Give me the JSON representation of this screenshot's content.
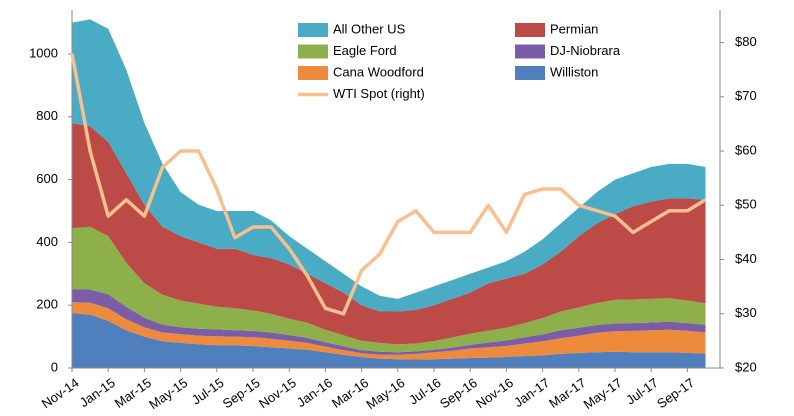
{
  "chart_data": {
    "type": "area",
    "categories": [
      "Nov-14",
      null,
      "Jan-15",
      null,
      "Mar-15",
      null,
      "May-15",
      null,
      "Jul-15",
      null,
      "Sep-15",
      null,
      "Nov-15",
      null,
      "Jan-16",
      null,
      "Mar-16",
      null,
      "May-16",
      null,
      "Jul-16",
      null,
      "Sep-16",
      null,
      "Nov-16",
      null,
      "Jan-17",
      null,
      "Mar-17",
      null,
      "May-17",
      null,
      "Jul-17",
      null,
      "Sep-17",
      null
    ],
    "series": [
      {
        "name": "Williston",
        "color": "#4f7fbd",
        "values": [
          175,
          170,
          150,
          120,
          100,
          85,
          80,
          75,
          73,
          72,
          70,
          66,
          62,
          58,
          50,
          42,
          35,
          30,
          28,
          27,
          28,
          30,
          32,
          33,
          35,
          38,
          40,
          45,
          48,
          50,
          52,
          50,
          50,
          50,
          48,
          46
        ]
      },
      {
        "name": "Cana Woodford",
        "color": "#ee8a3c",
        "values": [
          35,
          38,
          40,
          35,
          30,
          28,
          28,
          28,
          28,
          28,
          28,
          27,
          25,
          22,
          18,
          15,
          12,
          12,
          14,
          18,
          22,
          25,
          30,
          33,
          35,
          40,
          45,
          50,
          55,
          62,
          65,
          68,
          70,
          72,
          70,
          68
        ]
      },
      {
        "name": "DJ-Niobrara",
        "color": "#7b5ca7",
        "values": [
          40,
          42,
          45,
          40,
          30,
          25,
          22,
          22,
          22,
          20,
          20,
          20,
          18,
          16,
          14,
          12,
          10,
          10,
          8,
          8,
          8,
          10,
          12,
          15,
          18,
          20,
          22,
          25,
          25,
          25,
          25,
          25,
          25,
          25,
          25,
          24
        ]
      },
      {
        "name": "Eagle Ford",
        "color": "#8eb04b",
        "values": [
          195,
          200,
          185,
          140,
          110,
          95,
          85,
          80,
          72,
          70,
          65,
          60,
          52,
          48,
          40,
          35,
          30,
          28,
          25,
          25,
          28,
          32,
          35,
          38,
          40,
          45,
          52,
          60,
          65,
          70,
          75,
          75,
          75,
          75,
          72,
          68
        ]
      },
      {
        "name": "Permian",
        "color": "#bc4a47",
        "values": [
          335,
          320,
          300,
          285,
          250,
          217,
          205,
          195,
          185,
          190,
          177,
          177,
          173,
          156,
          148,
          136,
          113,
          100,
          105,
          107,
          114,
          123,
          131,
          151,
          157,
          157,
          171,
          190,
          227,
          253,
          273,
          297,
          310,
          318,
          325,
          329
        ]
      },
      {
        "name": "All Other US",
        "color": "#4aabc5",
        "values": [
          320,
          340,
          360,
          330,
          260,
          200,
          140,
          120,
          120,
          120,
          140,
          120,
          90,
          80,
          70,
          60,
          60,
          50,
          40,
          55,
          60,
          60,
          60,
          50,
          55,
          70,
          80,
          90,
          90,
          100,
          110,
          105,
          110,
          110,
          110,
          105
        ]
      },
      {
        "name": "WTI Spot (right)",
        "color": "#f7c08e",
        "type": "line",
        "axis": "y2",
        "values": [
          78,
          60,
          48,
          51,
          48,
          57,
          60,
          60,
          53,
          44,
          46,
          46,
          42,
          37,
          31,
          30,
          38,
          41,
          47,
          49,
          45,
          45,
          45,
          50,
          45,
          52,
          53,
          53,
          50,
          49,
          48,
          45,
          47,
          49,
          49,
          51
        ]
      }
    ],
    "ylim": [
      0,
      1140
    ],
    "yticks": [
      0,
      200,
      400,
      600,
      800,
      1000
    ],
    "y2lim": [
      20,
      86
    ],
    "y2ticks": [
      {
        "value": 20,
        "label": "$20"
      },
      {
        "value": 30,
        "label": "$30"
      },
      {
        "value": 40,
        "label": "$40"
      },
      {
        "value": 50,
        "label": "$50"
      },
      {
        "value": 60,
        "label": "$60"
      },
      {
        "value": 70,
        "label": "$70"
      },
      {
        "value": 80,
        "label": "$80"
      }
    ],
    "grid": false,
    "legend": "top"
  }
}
